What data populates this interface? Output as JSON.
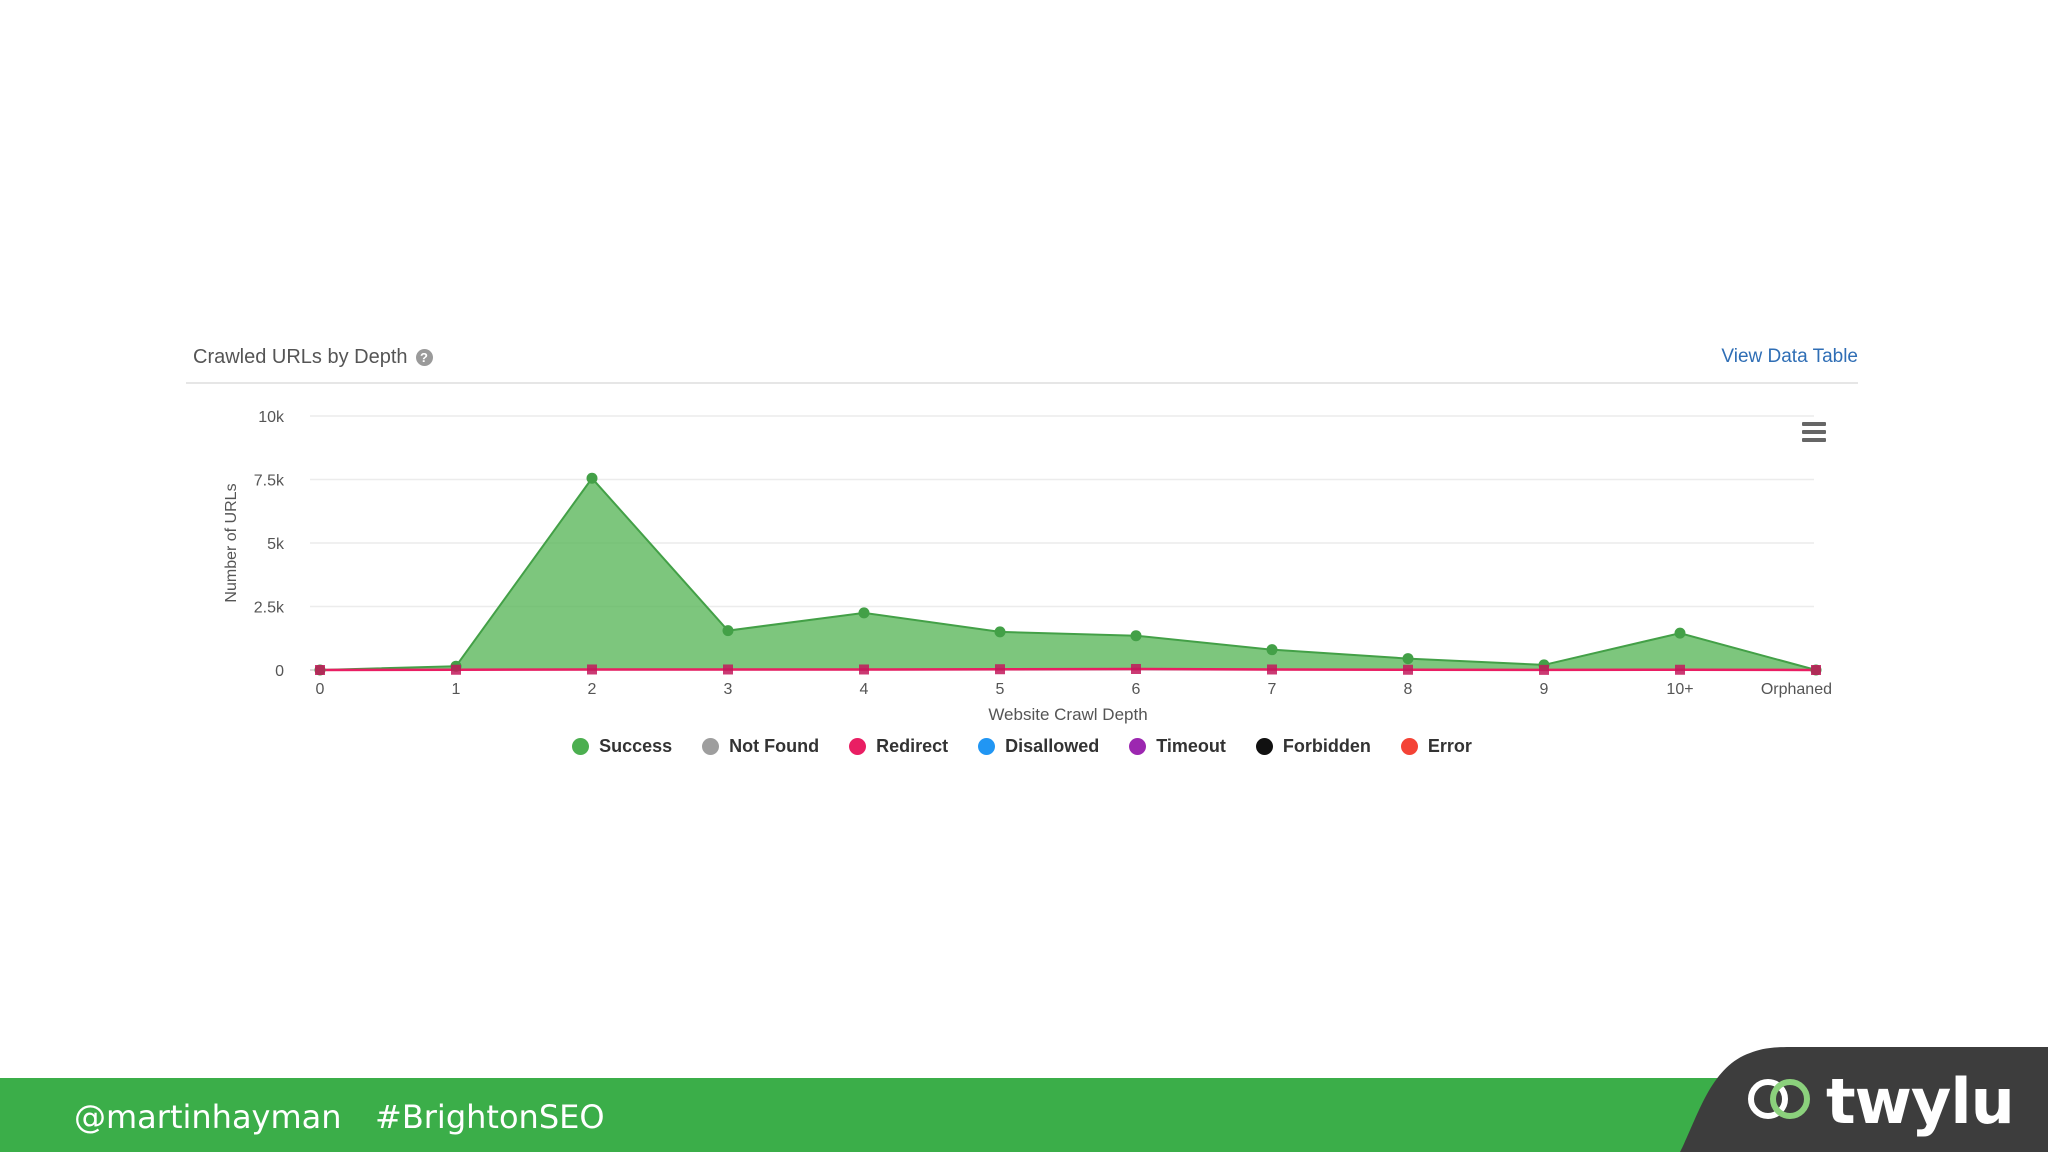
{
  "chart": {
    "title": "Crawled URLs by Depth",
    "help_icon": "question-circle-icon",
    "view_table_label": "View Data Table",
    "menu_icon": "hamburger-menu-icon"
  },
  "chart_data": {
    "type": "area",
    "title": "Crawled URLs by Depth",
    "xlabel": "Website Crawl Depth",
    "ylabel": "Number of URLs",
    "categories": [
      "0",
      "1",
      "2",
      "3",
      "4",
      "5",
      "6",
      "7",
      "8",
      "9",
      "10+",
      "Orphaned"
    ],
    "ylim": [
      0,
      10000
    ],
    "yticks": [
      {
        "value": 0,
        "label": "0"
      },
      {
        "value": 2500,
        "label": "2.5k"
      },
      {
        "value": 5000,
        "label": "5k"
      },
      {
        "value": 7500,
        "label": "7.5k"
      },
      {
        "value": 10000,
        "label": "10k"
      }
    ],
    "grid": true,
    "legend_position": "bottom",
    "series": [
      {
        "name": "Success",
        "color": "#4caf50",
        "values": [
          0,
          150,
          7550,
          1550,
          2250,
          1500,
          1350,
          800,
          450,
          200,
          1450,
          0
        ]
      },
      {
        "name": "Not Found",
        "color": "#9e9e9e",
        "values": [
          0,
          0,
          0,
          0,
          0,
          0,
          0,
          0,
          0,
          0,
          0,
          0
        ]
      },
      {
        "name": "Redirect",
        "color": "#e91e63",
        "values": [
          0,
          10,
          20,
          20,
          20,
          30,
          40,
          20,
          10,
          5,
          10,
          0
        ]
      },
      {
        "name": "Disallowed",
        "color": "#2196f3",
        "values": [
          0,
          0,
          0,
          0,
          0,
          0,
          0,
          0,
          0,
          0,
          0,
          0
        ]
      },
      {
        "name": "Timeout",
        "color": "#9c27b0",
        "values": [
          0,
          0,
          0,
          0,
          0,
          0,
          0,
          0,
          0,
          0,
          0,
          0
        ]
      },
      {
        "name": "Forbidden",
        "color": "#111111",
        "values": [
          0,
          0,
          0,
          0,
          0,
          0,
          0,
          0,
          0,
          0,
          0,
          0
        ]
      },
      {
        "name": "Error",
        "color": "#f44336",
        "values": [
          0,
          0,
          0,
          0,
          0,
          0,
          0,
          0,
          0,
          0,
          0,
          0
        ]
      }
    ]
  },
  "footer": {
    "handle": "@martinhayman",
    "hashtag": "#BrightonSEO",
    "logo_text": "twylu",
    "logo_icon": "twylu-link-icon",
    "bar_color": "#3bae49",
    "tab_color": "#3d3d3d"
  }
}
